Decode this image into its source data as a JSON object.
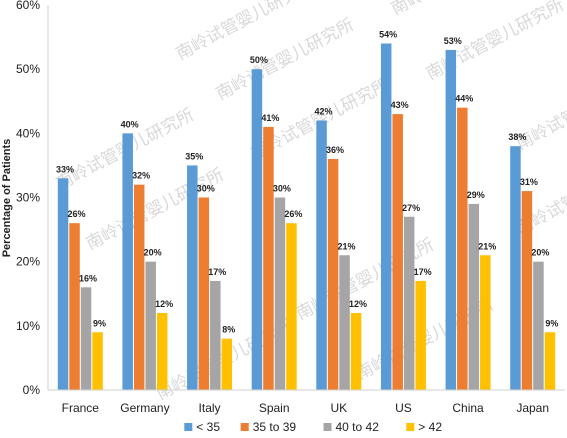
{
  "chart_data": {
    "type": "bar",
    "title": "",
    "xlabel": "",
    "ylabel": "Percentage of Patients",
    "ylim": [
      0,
      60
    ],
    "yticks": [
      "0%",
      "10%",
      "20%",
      "30%",
      "40%",
      "50%",
      "60%"
    ],
    "categories": [
      "France",
      "Germany",
      "Italy",
      "Spain",
      "UK",
      "US",
      "China",
      "Japan"
    ],
    "series": [
      {
        "name": "< 35",
        "color": "#5b9bd5",
        "values": [
          33,
          40,
          35,
          50,
          42,
          54,
          53,
          38
        ]
      },
      {
        "name": "35 to 39",
        "color": "#ed7d31",
        "values": [
          26,
          32,
          30,
          41,
          36,
          43,
          44,
          31
        ]
      },
      {
        "name": "40 to 42",
        "color": "#a5a5a5",
        "values": [
          16,
          20,
          17,
          30,
          21,
          27,
          29,
          20
        ]
      },
      {
        "name": "> 42",
        "color": "#ffc000",
        "values": [
          9,
          12,
          8,
          26,
          12,
          17,
          21,
          9
        ]
      }
    ],
    "value_suffix": "%",
    "grid": false,
    "legend_position": "bottom"
  },
  "watermark": {
    "text": "南岭试管婴儿研究所"
  }
}
